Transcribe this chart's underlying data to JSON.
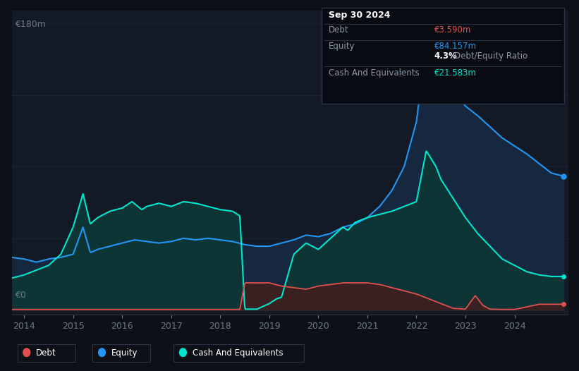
{
  "bg_color": "#0d1117",
  "plot_bg_color": "#131a26",
  "grid_color": "#1e2535",
  "equity_color": "#2196f3",
  "equity_fill": "#162840",
  "cash_color": "#00e5cc",
  "cash_fill": "#0d3535",
  "debt_color": "#e05050",
  "debt_fill": "#3a2020",
  "ylim": [
    0,
    180
  ],
  "ylabel_top": "€180m",
  "ylabel_zero": "€0",
  "xticks": [
    2014,
    2015,
    2016,
    2017,
    2018,
    2019,
    2020,
    2021,
    2022,
    2023,
    2024
  ],
  "tooltip": {
    "title": "Sep 30 2024",
    "debt_label": "Debt",
    "debt_value": "€3.590m",
    "equity_label": "Equity",
    "equity_value": "€84.157m",
    "ratio_value": "4.3%",
    "ratio_label": "Debt/Equity Ratio",
    "cash_label": "Cash And Equivalents",
    "cash_value": "€21.583m"
  },
  "legend_items": [
    {
      "label": "Debt",
      "color": "#e05050"
    },
    {
      "label": "Equity",
      "color": "#2196f3"
    },
    {
      "label": "Cash And Equivalents",
      "color": "#00e5cc"
    }
  ]
}
